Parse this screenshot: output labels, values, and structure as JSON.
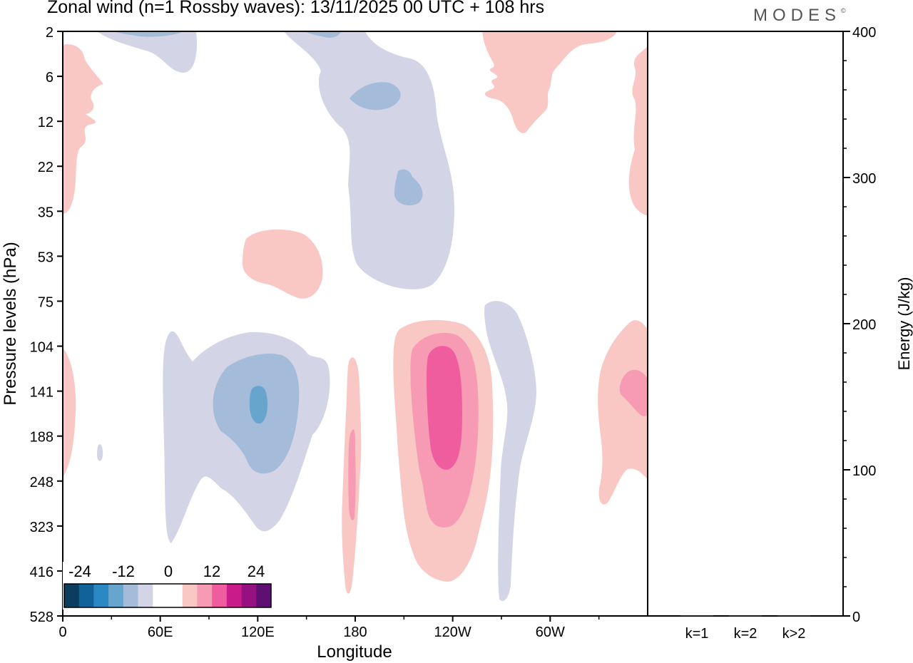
{
  "header": {
    "title": "Zonal wind (n=1 Rossby waves):  13/11/2025  00 UTC  + 108 hrs",
    "brand": "MODES",
    "brand_mark": "©"
  },
  "chart_data": [
    {
      "type": "heatmap",
      "title": "Zonal wind (n=1 Rossby waves):  13/11/2025  00 UTC  + 108 hrs",
      "xlabel": "Longitude",
      "ylabel": "Pressure levels (hPa)",
      "x_ticks": [
        "0",
        "60E",
        "120E",
        "180",
        "120W",
        "60W"
      ],
      "y_ticks": [
        "2",
        "6",
        "12",
        "22",
        "35",
        "53",
        "75",
        "104",
        "141",
        "188",
        "248",
        "323",
        "416",
        "528"
      ],
      "x_range": [
        0,
        360
      ],
      "colorbar": {
        "labels": [
          "-24",
          "-12",
          "0",
          "12",
          "24"
        ],
        "colors": [
          "#0c3d5e",
          "#11629a",
          "#2a88c2",
          "#67a5cf",
          "#a4bbda",
          "#d3d5e6",
          "#ffffff",
          "#ffffff",
          "#f9c8c4",
          "#f79bb4",
          "#f05d9f",
          "#c91b8a",
          "#951182",
          "#5e0f72"
        ]
      },
      "regions": [
        {
          "sign": "negative",
          "level": 1,
          "lon": [
            48,
            163
          ],
          "p": [
            104,
            416
          ],
          "peak": -9
        },
        {
          "sign": "negative",
          "level": 2,
          "lon": [
            90,
            145
          ],
          "p": [
            118,
            248
          ],
          "peak": -9
        },
        {
          "sign": "negative",
          "level": 3,
          "lon": [
            115,
            126
          ],
          "p": [
            135,
            185
          ],
          "peak": -10
        },
        {
          "sign": "negative",
          "level": 1,
          "lon": [
            135,
            240
          ],
          "p": [
            2,
            75
          ],
          "peak": -8
        },
        {
          "sign": "negative",
          "level": 2,
          "lon": [
            177,
            197
          ],
          "p": [
            7,
            10
          ],
          "peak": -7
        },
        {
          "sign": "negative",
          "level": 2,
          "lon": [
            205,
            222
          ],
          "p": [
            24,
            32
          ],
          "peak": -7
        },
        {
          "sign": "negative",
          "level": 1,
          "lon": [
            268,
            290
          ],
          "p": [
            75,
            528
          ],
          "peak": -5
        },
        {
          "sign": "negative",
          "level": 1,
          "lon": [
            20,
            80
          ],
          "p": [
            2,
            5
          ],
          "peak": -6
        },
        {
          "sign": "positive",
          "level": 1,
          "lon": [
            0,
            25
          ],
          "p": [
            3,
            35
          ],
          "peak": 5
        },
        {
          "sign": "positive",
          "level": 1,
          "lon": [
            111,
            160
          ],
          "p": [
            50,
            74
          ],
          "peak": 5
        },
        {
          "sign": "positive",
          "level": 1,
          "lon": [
            175,
            182
          ],
          "p": [
            120,
            480
          ],
          "peak": 6
        },
        {
          "sign": "positive",
          "level": 1,
          "lon": [
            205,
            265
          ],
          "p": [
            100,
            430
          ],
          "peak": 14
        },
        {
          "sign": "positive",
          "level": 2,
          "lon": [
            217,
            255
          ],
          "p": [
            104,
            323
          ],
          "peak": 14
        },
        {
          "sign": "positive",
          "level": 3,
          "lon": [
            224,
            246
          ],
          "p": [
            122,
            260
          ],
          "peak": 15
        },
        {
          "sign": "positive",
          "level": 1,
          "lon": [
            262,
            340
          ],
          "p": [
            2,
            15
          ],
          "peak": 5
        },
        {
          "sign": "positive",
          "level": 1,
          "lon": [
            330,
            360
          ],
          "p": [
            97,
            330
          ],
          "peak": 6
        },
        {
          "sign": "positive",
          "level": 2,
          "lon": [
            340,
            360
          ],
          "p": [
            130,
            165
          ],
          "peak": 7
        },
        {
          "sign": "positive",
          "level": 1,
          "lon": [
            0,
            8
          ],
          "p": [
            110,
            250
          ],
          "peak": 4
        }
      ]
    },
    {
      "type": "bar",
      "ylabel": "Energy (J/kg)",
      "ylim": [
        0,
        400
      ],
      "y_ticks": [
        "0",
        "100",
        "200",
        "300",
        "400"
      ],
      "categories": [
        "k=1",
        "k=2",
        "k>2"
      ],
      "values": [
        0.4,
        0.3,
        0.3
      ]
    }
  ]
}
